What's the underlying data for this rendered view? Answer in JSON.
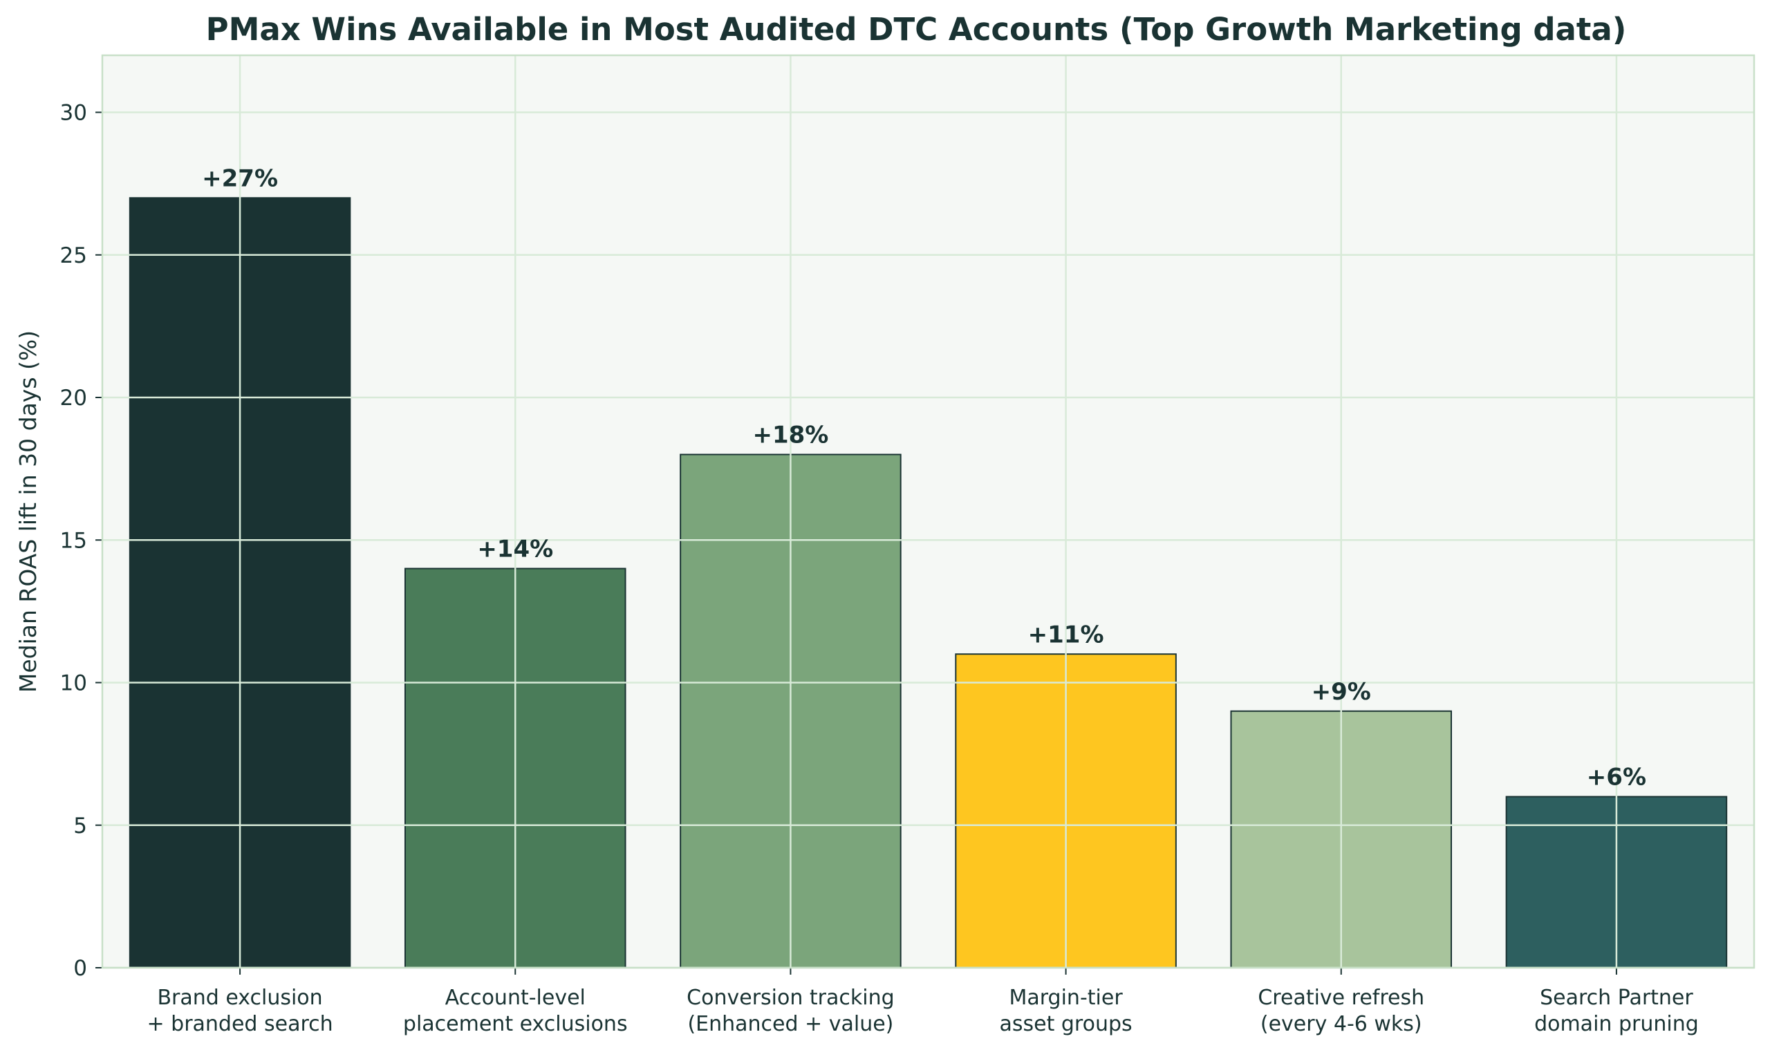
{
  "chart_data": {
    "type": "bar",
    "title": "PMax Wins Available in Most Audited DTC Accounts (Top Growth Marketing data)",
    "xlabel": "",
    "ylabel": "Median ROAS lift in 30 days (%)",
    "categories": [
      [
        "Brand exclusion",
        "+ branded search"
      ],
      [
        "Account-level",
        "placement exclusions"
      ],
      [
        "Conversion tracking",
        "(Enhanced + value)"
      ],
      [
        "Margin-tier",
        "asset groups"
      ],
      [
        "Creative refresh",
        "(every 4-6 wks)"
      ],
      [
        "Search Partner",
        "domain pruning"
      ]
    ],
    "values": [
      27,
      14,
      18,
      11,
      9,
      6
    ],
    "bar_labels": [
      "+27%",
      "+14%",
      "+18%",
      "+11%",
      "+9%",
      "+6%"
    ],
    "bar_colors": [
      "#1a3333",
      "#4a7c59",
      "#7ba57b",
      "#fec620",
      "#a8c49c",
      "#2d5f5f"
    ],
    "ylim": [
      0,
      32
    ],
    "yticks": [
      "0",
      "5",
      "10",
      "15",
      "20",
      "25",
      "30"
    ],
    "ytick_values": [
      0,
      5,
      10,
      15,
      20,
      25,
      30
    ],
    "grid": true,
    "colors": {
      "plot_background": "#f5f8f5",
      "grid": "#d8ead8",
      "text": "#1a3333",
      "spine": "#c8e0c8",
      "bar_edge": "#1a3333"
    }
  }
}
